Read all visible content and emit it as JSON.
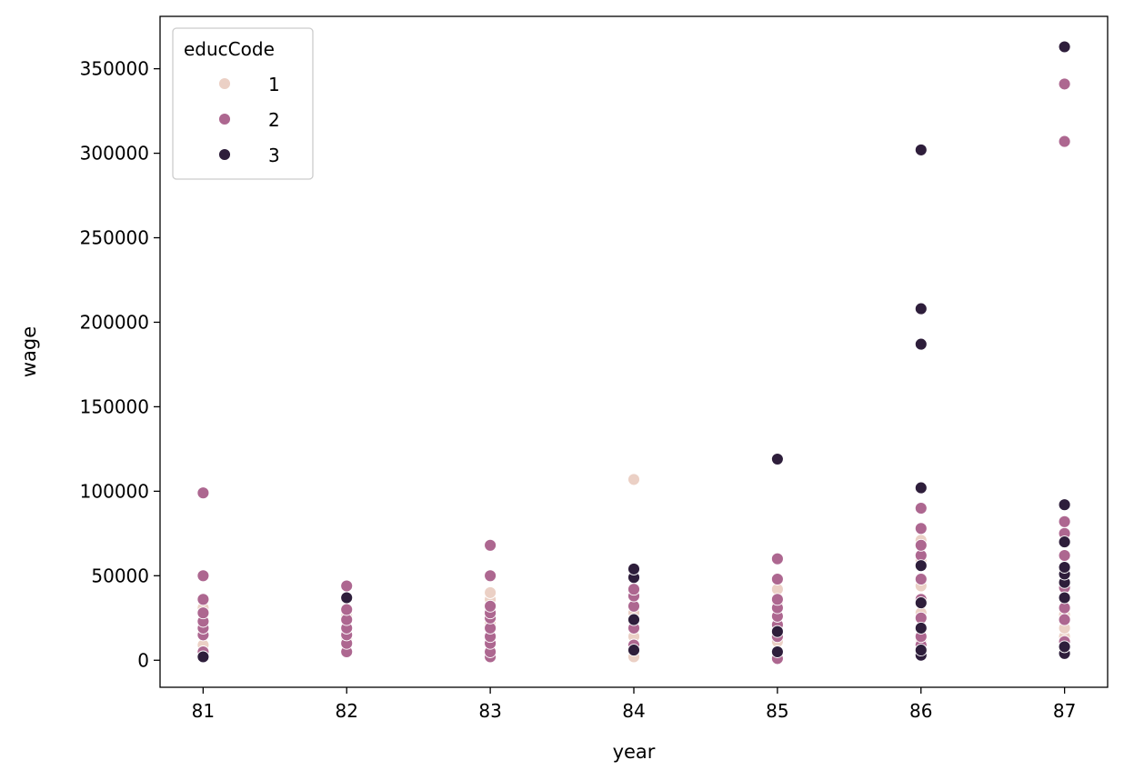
{
  "chart_data": {
    "type": "scatter",
    "title": "",
    "xlabel": "year",
    "ylabel": "wage",
    "xlim": [
      80.7,
      87.3
    ],
    "ylim": [
      -16000,
      381000
    ],
    "x_ticks": [
      81,
      82,
      83,
      84,
      85,
      86,
      87
    ],
    "x_tick_labels": [
      "81",
      "82",
      "83",
      "84",
      "85",
      "86",
      "87"
    ],
    "y_ticks": [
      0,
      50000,
      100000,
      150000,
      200000,
      250000,
      300000,
      350000
    ],
    "y_tick_labels": [
      "0",
      "50000",
      "100000",
      "150000",
      "200000",
      "250000",
      "300000",
      "350000"
    ],
    "grid": false,
    "legend": {
      "title": "educCode",
      "placement": "top-left",
      "entries": [
        {
          "label": "1",
          "color": "#ebd0c5"
        },
        {
          "label": "2",
          "color": "#ad6790"
        },
        {
          "label": "3",
          "color": "#2e1e3b"
        }
      ]
    },
    "series": [
      {
        "name": "1",
        "color": "#ebd0c5",
        "points": [
          [
            81,
            9000
          ],
          [
            81,
            16000
          ],
          [
            81,
            24000
          ],
          [
            81,
            31000
          ],
          [
            82,
            6000
          ],
          [
            82,
            13000
          ],
          [
            82,
            19000
          ],
          [
            82,
            26000
          ],
          [
            83,
            9000
          ],
          [
            83,
            22000
          ],
          [
            83,
            36000
          ],
          [
            83,
            40000
          ],
          [
            84,
            2000
          ],
          [
            84,
            14000
          ],
          [
            84,
            28000
          ],
          [
            84,
            38000
          ],
          [
            84,
            107000
          ],
          [
            85,
            11000
          ],
          [
            85,
            19000
          ],
          [
            85,
            34000
          ],
          [
            85,
            42000
          ],
          [
            86,
            11000
          ],
          [
            86,
            28000
          ],
          [
            86,
            44000
          ],
          [
            86,
            59000
          ],
          [
            86,
            71000
          ],
          [
            87,
            14000
          ],
          [
            87,
            19000
          ],
          [
            87,
            27000
          ],
          [
            87,
            36000
          ],
          [
            87,
            46000
          ]
        ]
      },
      {
        "name": "2",
        "color": "#ad6790",
        "points": [
          [
            81,
            5000
          ],
          [
            81,
            15000
          ],
          [
            81,
            19000
          ],
          [
            81,
            23000
          ],
          [
            81,
            28000
          ],
          [
            81,
            36000
          ],
          [
            81,
            50000
          ],
          [
            81,
            99000
          ],
          [
            82,
            5000
          ],
          [
            82,
            10000
          ],
          [
            82,
            15000
          ],
          [
            82,
            19000
          ],
          [
            82,
            24000
          ],
          [
            82,
            30000
          ],
          [
            82,
            44000
          ],
          [
            83,
            2000
          ],
          [
            83,
            5000
          ],
          [
            83,
            10000
          ],
          [
            83,
            14000
          ],
          [
            83,
            19000
          ],
          [
            83,
            25000
          ],
          [
            83,
            28000
          ],
          [
            83,
            32000
          ],
          [
            83,
            50000
          ],
          [
            83,
            68000
          ],
          [
            84,
            9000
          ],
          [
            84,
            19000
          ],
          [
            84,
            24000
          ],
          [
            84,
            32000
          ],
          [
            84,
            38000
          ],
          [
            84,
            42000
          ],
          [
            85,
            1000
          ],
          [
            85,
            14000
          ],
          [
            85,
            21000
          ],
          [
            85,
            26000
          ],
          [
            85,
            31000
          ],
          [
            85,
            36000
          ],
          [
            85,
            48000
          ],
          [
            85,
            60000
          ],
          [
            86,
            3000
          ],
          [
            86,
            9000
          ],
          [
            86,
            14000
          ],
          [
            86,
            25000
          ],
          [
            86,
            36000
          ],
          [
            86,
            48000
          ],
          [
            86,
            62000
          ],
          [
            86,
            68000
          ],
          [
            86,
            78000
          ],
          [
            86,
            90000
          ],
          [
            87,
            5000
          ],
          [
            87,
            11000
          ],
          [
            87,
            24000
          ],
          [
            87,
            31000
          ],
          [
            87,
            43000
          ],
          [
            87,
            62000
          ],
          [
            87,
            75000
          ],
          [
            87,
            82000
          ],
          [
            87,
            307000
          ],
          [
            87,
            341000
          ]
        ]
      },
      {
        "name": "3",
        "color": "#2e1e3b",
        "points": [
          [
            81,
            2000
          ],
          [
            82,
            37000
          ],
          [
            84,
            6000
          ],
          [
            84,
            24000
          ],
          [
            84,
            49000
          ],
          [
            84,
            54000
          ],
          [
            85,
            5000
          ],
          [
            85,
            17000
          ],
          [
            85,
            119000
          ],
          [
            86,
            3000
          ],
          [
            86,
            6000
          ],
          [
            86,
            19000
          ],
          [
            86,
            34000
          ],
          [
            86,
            56000
          ],
          [
            86,
            102000
          ],
          [
            86,
            187000
          ],
          [
            86,
            208000
          ],
          [
            86,
            302000
          ],
          [
            87,
            4000
          ],
          [
            87,
            8000
          ],
          [
            87,
            37000
          ],
          [
            87,
            46000
          ],
          [
            87,
            51000
          ],
          [
            87,
            55000
          ],
          [
            87,
            70000
          ],
          [
            87,
            92000
          ],
          [
            87,
            363000
          ]
        ]
      }
    ]
  }
}
